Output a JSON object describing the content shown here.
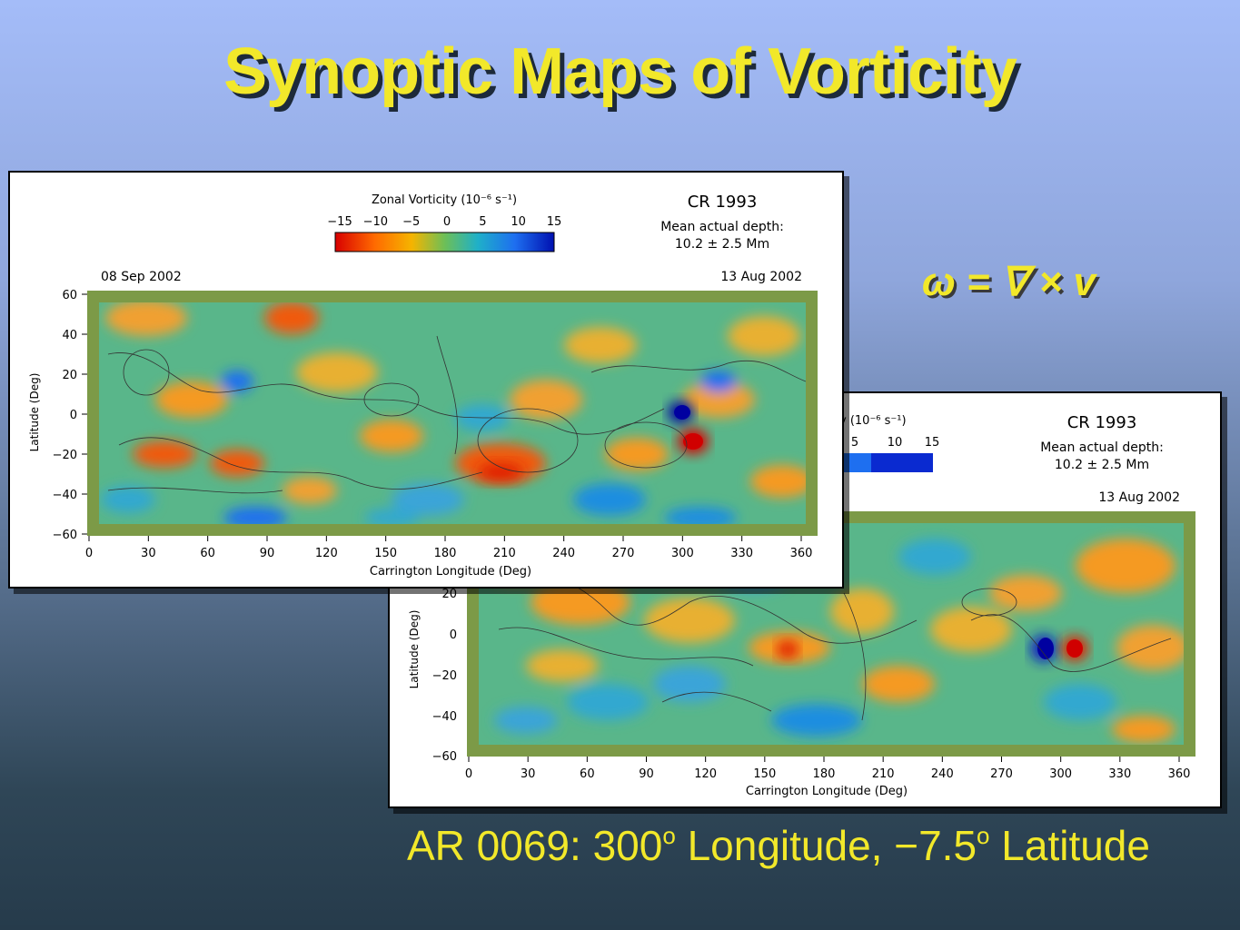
{
  "title": "Synoptic Maps of  Vorticity",
  "formula": "ω = ∇ × v",
  "caption": {
    "prefix": "AR 0069:  300",
    "deg1": "o",
    "middle": " Longitude, −7.5",
    "deg2": "o",
    "suffix": " Latitude"
  },
  "maps": {
    "colorbar_title": "Zonal Vorticity (10⁻⁶ s⁻¹)",
    "colorbar_title_partial": "y (10⁻⁶ s⁻¹)",
    "colorbar_ticks": [
      "−15",
      "−10",
      "−5",
      "0",
      "5",
      "10",
      "15"
    ],
    "colorbar_ticks_partial": [
      "5",
      "10",
      "15"
    ],
    "colorbar_colors": [
      "#d80000",
      "#ff6a00",
      "#f5b400",
      "#6dbf57",
      "#1fb0c8",
      "#1e6ff0",
      "#0010b0"
    ],
    "cr_label": "CR 1993",
    "depth_label": "Mean actual depth:",
    "depth_value": "10.2  ±  2.5 Mm",
    "date_left": "08 Sep 2002",
    "date_right": "13 Aug 2002",
    "ylabel": "Latitude (Deg)",
    "ylabel_partial": "Latitude (Deg)",
    "xlabel": "Carrington Longitude (Deg)",
    "y_ticks": [
      "60",
      "40",
      "20",
      "0",
      "−20",
      "−40",
      "−60"
    ],
    "y_ticks_partial": [
      "20",
      "0",
      "−20",
      "−40",
      "−60"
    ],
    "x_ticks": [
      "0",
      "30",
      "60",
      "90",
      "120",
      "150",
      "180",
      "210",
      "240",
      "270",
      "300",
      "330",
      "360"
    ]
  }
}
